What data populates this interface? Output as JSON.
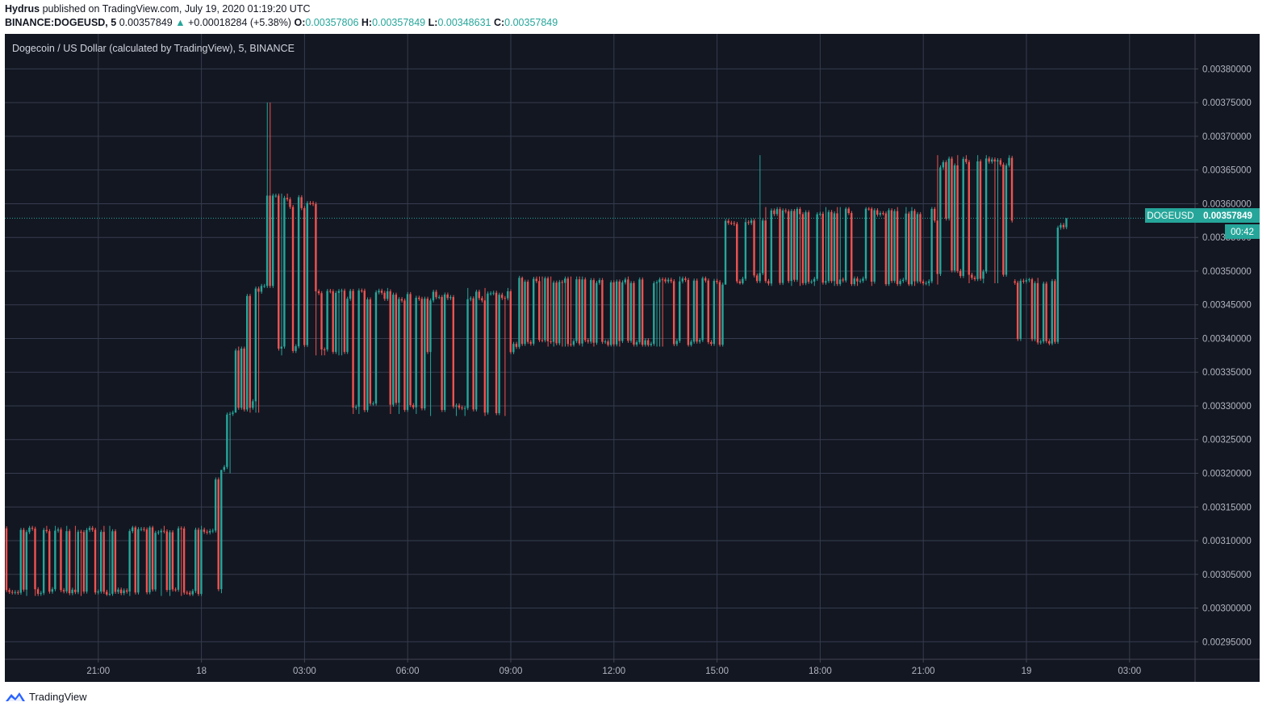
{
  "header": {
    "author": "Hydrus",
    "published_text": "published on TradingView.com, July 19, 2020 01:19:20 UTC",
    "symbol": "BINANCE:DOGEUSD, 5",
    "last_price": "0.00357849",
    "change": "+0.00018284 (+5.38%)",
    "o_label": "O:",
    "o_value": "0.00357806",
    "h_label": "H:",
    "h_value": "0.00357849",
    "l_label": "L:",
    "l_value": "0.00348631",
    "c_label": "C:",
    "c_value": "0.00357849"
  },
  "chart_title": "Dogecoin / US Dollar (calculated by TradingView), 5, BINANCE",
  "price_tag": {
    "symbol": "DOGEUSD",
    "price": "0.00357849",
    "countdown": "00:42"
  },
  "colors": {
    "up": "#26a69a",
    "down": "#ef5350",
    "background": "#131722",
    "grid": "#363c4e",
    "text": "#b2b5be"
  },
  "footer": {
    "brand": "TradingView",
    "logo_icon": "tradingview-logo-icon"
  },
  "chart_data": {
    "type": "candlestick",
    "title": "Dogecoin / US Dollar (calculated by TradingView), 5, BINANCE",
    "ylim": [
      0.00293,
      0.00384
    ],
    "y_ticks": [
      "0.00380000",
      "0.00375000",
      "0.00370000",
      "0.00365000",
      "0.00360000",
      "0.00355000",
      "0.00350000",
      "0.00345000",
      "0.00340000",
      "0.00335000",
      "0.00330000",
      "0.00325000",
      "0.00320000",
      "0.00315000",
      "0.00310000",
      "0.00305000",
      "0.00300000",
      "0.00295000"
    ],
    "x_ticks": [
      "21:00",
      "18",
      "03:00",
      "06:00",
      "09:00",
      "12:00",
      "15:00",
      "18:00",
      "21:00",
      "19",
      "03:00"
    ],
    "last_price": 0.00357849,
    "segments": [
      {
        "from": "2020-07-17 18:00",
        "to": "2020-07-18 00:25",
        "low": 0.003018,
        "high": 0.003122,
        "open": 0.003022,
        "close": 0.003115
      },
      {
        "from": "2020-07-18 00:25",
        "to": "2020-07-18 00:40",
        "low": 0.003022,
        "high": 0.003205,
        "open": 0.003115,
        "close": 0.003205
      },
      {
        "from": "2020-07-18 00:40",
        "to": "2020-07-18 01:00",
        "low": 0.0032,
        "high": 0.003295,
        "open": 0.003205,
        "close": 0.00329
      },
      {
        "from": "2020-07-18 01:00",
        "to": "2020-07-18 01:15",
        "low": 0.00329,
        "high": 0.003388,
        "open": 0.00329,
        "close": 0.003385
      },
      {
        "from": "2020-07-18 01:15",
        "to": "2020-07-18 01:50",
        "low": 0.00329,
        "high": 0.003482,
        "open": 0.003385,
        "close": 0.003478
      },
      {
        "from": "2020-07-18 01:50",
        "to": "2020-07-18 02:15",
        "low": 0.00347,
        "high": 0.00375,
        "open": 0.003478,
        "close": 0.003612
      },
      {
        "from": "2020-07-18 02:15",
        "to": "2020-07-18 03:25",
        "low": 0.003375,
        "high": 0.003615,
        "open": 0.003612,
        "close": 0.00347
      },
      {
        "from": "2020-07-18 03:25",
        "to": "2020-07-18 04:15",
        "low": 0.003375,
        "high": 0.003475,
        "open": 0.00347,
        "close": 0.00338
      },
      {
        "from": "2020-07-18 04:15",
        "to": "2020-07-18 05:30",
        "low": 0.003288,
        "high": 0.003475,
        "open": 0.00338,
        "close": 0.00347
      },
      {
        "from": "2020-07-18 05:30",
        "to": "2020-07-18 06:40",
        "low": 0.003288,
        "high": 0.003475,
        "open": 0.00347,
        "close": 0.00338
      },
      {
        "from": "2020-07-18 06:40",
        "to": "2020-07-18 09:00",
        "low": 0.003285,
        "high": 0.003475,
        "open": 0.00338,
        "close": 0.00347
      },
      {
        "from": "2020-07-18 09:00",
        "to": "2020-07-18 09:20",
        "low": 0.003375,
        "high": 0.003578,
        "open": 0.00347,
        "close": 0.00349
      },
      {
        "from": "2020-07-18 09:20",
        "to": "2020-07-18 15:15",
        "low": 0.003388,
        "high": 0.003492,
        "open": 0.00349,
        "close": 0.00348
      },
      {
        "from": "2020-07-18 15:15",
        "to": "2020-07-18 16:05",
        "low": 0.00348,
        "high": 0.003578,
        "open": 0.00348,
        "close": 0.003575
      },
      {
        "from": "2020-07-18 16:05",
        "to": "2020-07-18 16:25",
        "low": 0.00348,
        "high": 0.003672,
        "open": 0.003575,
        "close": 0.003575
      },
      {
        "from": "2020-07-18 16:25",
        "to": "2020-07-18 21:25",
        "low": 0.003478,
        "high": 0.003595,
        "open": 0.003575,
        "close": 0.003575
      },
      {
        "from": "2020-07-18 21:25",
        "to": "2020-07-18 21:45",
        "low": 0.00348,
        "high": 0.003672,
        "open": 0.003575,
        "close": 0.003578
      },
      {
        "from": "2020-07-18 21:45",
        "to": "2020-07-18 23:40",
        "low": 0.003482,
        "high": 0.003672,
        "open": 0.003578,
        "close": 0.003575
      },
      {
        "from": "2020-07-18 23:40",
        "to": "2020-07-19 00:55",
        "low": 0.00339,
        "high": 0.00349,
        "open": 0.003485,
        "close": 0.003395
      },
      {
        "from": "2020-07-19 00:55",
        "to": "2020-07-19 01:15",
        "low": 0.00339,
        "high": 0.003579,
        "open": 0.003395,
        "close": 0.003578
      }
    ]
  }
}
